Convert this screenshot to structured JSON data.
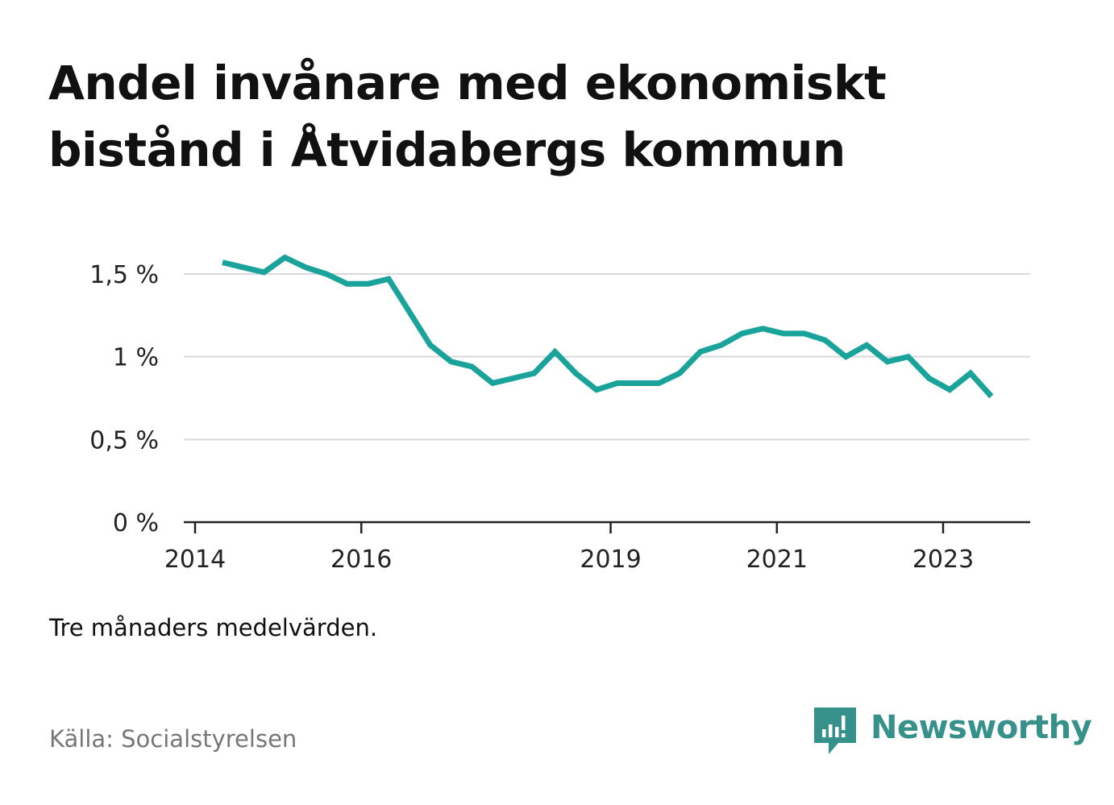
{
  "title": "Andel invånare med ekonomiskt bistånd i Åtvidabergs kommun",
  "note": "Tre månaders medelvärden.",
  "source": "Källa: Socialstyrelsen",
  "brand": {
    "name": "Newsworthy",
    "color": "#37918b",
    "icon": "newsworthy-logo-icon"
  },
  "colors": {
    "line": "#1aa39a",
    "grid": "#d9d9d9",
    "axis": "#222222"
  },
  "chart_data": {
    "type": "line",
    "title": "Andel invånare med ekonomiskt bistånd i Åtvidabergs kommun",
    "xlabel": "",
    "ylabel": "",
    "ylim": [
      0,
      1.5
    ],
    "y_ticks": [
      0,
      0.5,
      1,
      1.5
    ],
    "y_tick_labels": [
      "0 %",
      "0,5 %",
      "1 %",
      "1,5 %"
    ],
    "x_ticks": [
      2014,
      2016,
      2019,
      2021,
      2023
    ],
    "x_tick_labels": [
      "2014",
      "2016",
      "2019",
      "2021",
      "2023"
    ],
    "grid": true,
    "series": [
      {
        "x": [
          2014.33,
          2014.58,
          2014.83,
          2015.08,
          2015.33,
          2015.58,
          2015.83,
          2016.08,
          2016.33,
          2016.58,
          2016.83,
          2017.08,
          2017.33,
          2017.58,
          2017.83,
          2018.08,
          2018.33,
          2018.58,
          2018.83,
          2019.08,
          2019.33,
          2019.58,
          2019.83,
          2020.08,
          2020.33,
          2020.58,
          2020.83,
          2021.08,
          2021.33,
          2021.58,
          2021.83,
          2022.08,
          2022.33,
          2022.58,
          2022.83,
          2023.08,
          2023.33,
          2023.58
        ],
        "values": [
          1.57,
          1.54,
          1.51,
          1.6,
          1.54,
          1.5,
          1.44,
          1.44,
          1.47,
          1.27,
          1.07,
          0.97,
          0.94,
          0.84,
          0.87,
          0.9,
          1.03,
          0.9,
          0.8,
          0.84,
          0.84,
          0.84,
          0.9,
          1.03,
          1.07,
          1.14,
          1.17,
          1.14,
          1.14,
          1.1,
          1.0,
          1.07,
          0.97,
          1.0,
          0.87,
          0.8,
          0.9,
          0.76
        ]
      }
    ]
  }
}
